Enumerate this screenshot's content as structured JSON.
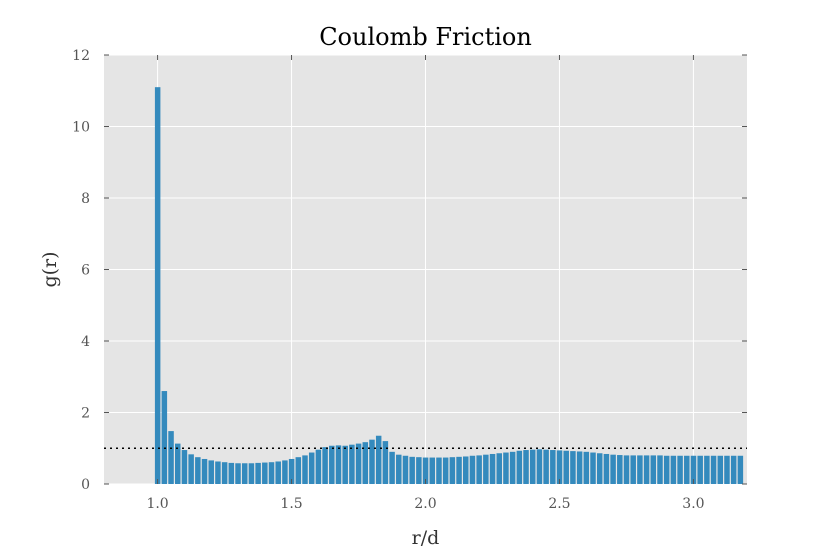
{
  "chart_data": {
    "type": "bar",
    "title": "Coulomb Friction",
    "xlabel": "r/d",
    "ylabel": "g(r)",
    "xlim": [
      0.8,
      3.2
    ],
    "ylim": [
      0,
      12
    ],
    "xticks": [
      1.0,
      1.5,
      2.0,
      2.5,
      3.0
    ],
    "xtick_labels": [
      "1.0",
      "1.5",
      "2.0",
      "2.5",
      "3.0"
    ],
    "yticks": [
      0,
      2,
      4,
      6,
      8,
      10,
      12
    ],
    "ytick_labels": [
      "0",
      "2",
      "4",
      "6",
      "8",
      "10",
      "12"
    ],
    "grid": true,
    "bar_color": "#348ABD",
    "background_color": "#E5E5E5",
    "reference_line": {
      "y": 1.0,
      "style": "dotted",
      "color": "#000000"
    },
    "bin_width": 0.025,
    "x": [
      0.99,
      1.015,
      1.04,
      1.065,
      1.09,
      1.115,
      1.14,
      1.165,
      1.19,
      1.215,
      1.24,
      1.265,
      1.29,
      1.315,
      1.34,
      1.365,
      1.39,
      1.415,
      1.44,
      1.465,
      1.49,
      1.515,
      1.54,
      1.565,
      1.59,
      1.615,
      1.64,
      1.665,
      1.69,
      1.715,
      1.74,
      1.765,
      1.79,
      1.815,
      1.84,
      1.865,
      1.89,
      1.915,
      1.94,
      1.965,
      1.99,
      2.015,
      2.04,
      2.065,
      2.09,
      2.115,
      2.14,
      2.165,
      2.19,
      2.215,
      2.24,
      2.265,
      2.29,
      2.315,
      2.34,
      2.365,
      2.39,
      2.415,
      2.44,
      2.465,
      2.49,
      2.515,
      2.54,
      2.565,
      2.59,
      2.615,
      2.64,
      2.665,
      2.69,
      2.715,
      2.74,
      2.765,
      2.79,
      2.815,
      2.84,
      2.865,
      2.89,
      2.915,
      2.94,
      2.965,
      2.99,
      3.015,
      3.04,
      3.065,
      3.09,
      3.115,
      3.14,
      3.165
    ],
    "values": [
      11.1,
      2.6,
      1.48,
      1.13,
      0.95,
      0.83,
      0.75,
      0.7,
      0.66,
      0.63,
      0.61,
      0.59,
      0.58,
      0.58,
      0.58,
      0.59,
      0.6,
      0.61,
      0.63,
      0.66,
      0.7,
      0.75,
      0.8,
      0.88,
      0.96,
      1.03,
      1.07,
      1.08,
      1.07,
      1.1,
      1.13,
      1.17,
      1.24,
      1.35,
      1.2,
      0.9,
      0.82,
      0.79,
      0.76,
      0.75,
      0.74,
      0.74,
      0.74,
      0.74,
      0.75,
      0.76,
      0.77,
      0.79,
      0.8,
      0.82,
      0.84,
      0.86,
      0.88,
      0.9,
      0.93,
      0.95,
      0.96,
      0.97,
      0.96,
      0.95,
      0.94,
      0.93,
      0.92,
      0.91,
      0.9,
      0.88,
      0.86,
      0.84,
      0.82,
      0.81,
      0.8,
      0.8,
      0.8,
      0.8,
      0.8,
      0.8,
      0.79,
      0.79,
      0.79,
      0.79,
      0.79,
      0.79,
      0.79,
      0.79,
      0.79,
      0.79,
      0.79,
      0.79
    ]
  }
}
